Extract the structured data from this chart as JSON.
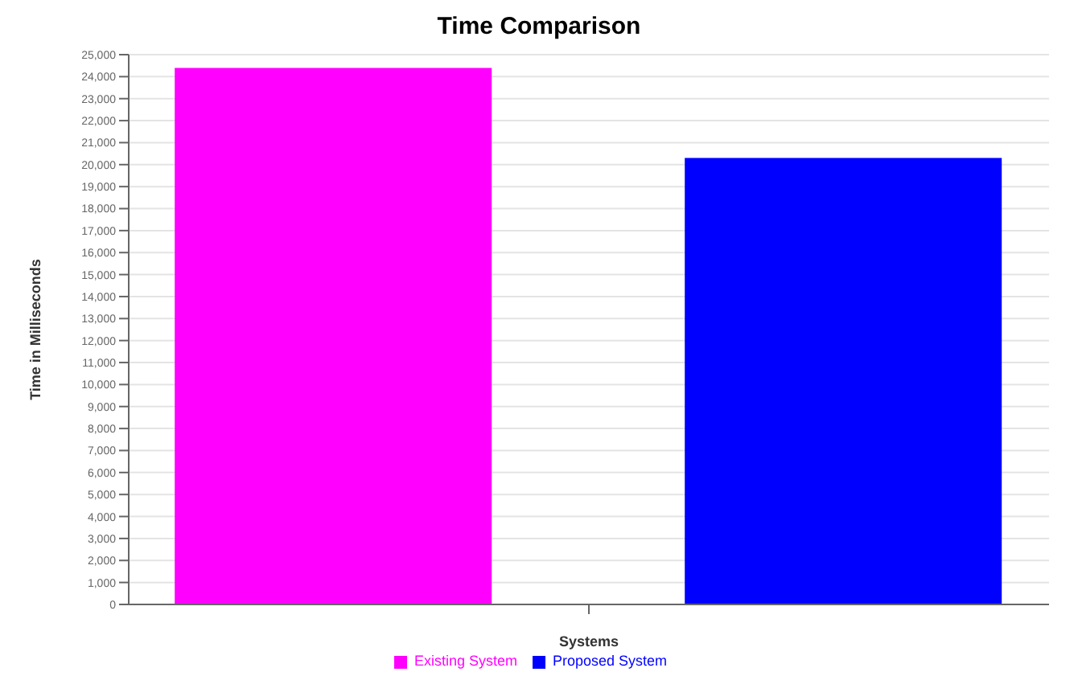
{
  "chart_data": {
    "type": "bar",
    "title": "Time Comparison",
    "xlabel": "Systems",
    "ylabel": "Time in Milliseconds",
    "categories": [
      null
    ],
    "series": [
      {
        "name": "Existing System",
        "color": "#ff00ff",
        "values": [
          24400
        ]
      },
      {
        "name": "Proposed System",
        "color": "#0000ff",
        "values": [
          20300
        ]
      }
    ],
    "ylim": [
      0,
      25000
    ],
    "yticks": [
      0,
      {
        "value": 1000,
        "label": "1,000"
      },
      {
        "value": 2000,
        "label": "2,000"
      },
      {
        "value": 3000,
        "label": "3,000"
      },
      {
        "value": 4000,
        "label": "4,000"
      },
      {
        "value": 5000,
        "label": "5,000"
      },
      {
        "value": 6000,
        "label": "6,000"
      },
      {
        "value": 7000,
        "label": "7,000"
      },
      {
        "value": 8000,
        "label": "8,000"
      },
      {
        "value": 9000,
        "label": "9,000"
      },
      {
        "value": 10000,
        "label": "10,000"
      },
      {
        "value": 11000,
        "label": "11,000"
      },
      {
        "value": 12000,
        "label": "12,000"
      },
      {
        "value": 13000,
        "label": "13,000"
      },
      {
        "value": 14000,
        "label": "14,000"
      },
      {
        "value": 15000,
        "label": "15,000"
      },
      {
        "value": 16000,
        "label": "16,000"
      },
      {
        "value": 17000,
        "label": "17,000"
      },
      {
        "value": 18000,
        "label": "18,000"
      },
      {
        "value": 19000,
        "label": "19,000"
      },
      {
        "value": 20000,
        "label": "20,000"
      },
      {
        "value": 21000,
        "label": "21,000"
      },
      {
        "value": 22000,
        "label": "22,000"
      },
      {
        "value": 23000,
        "label": "23,000"
      },
      {
        "value": 24000,
        "label": "24,000"
      },
      {
        "value": 25000,
        "label": "25,000"
      }
    ],
    "grid": "y",
    "legend": "bottom"
  }
}
